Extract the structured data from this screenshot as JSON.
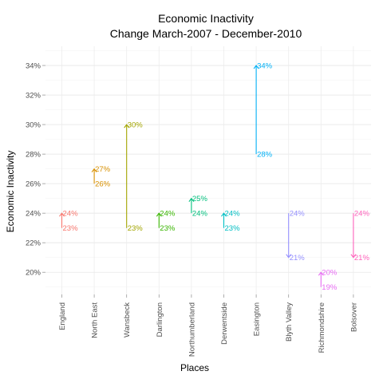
{
  "chart_data": {
    "type": "arrow",
    "title": "Economic Inactivity",
    "subtitle": "Change March-2007 - December-2010",
    "xlabel": "Places",
    "ylabel": "Economic Inactivity",
    "ylim": [
      18.5,
      35.3
    ],
    "yticks": [
      20,
      22,
      24,
      26,
      28,
      30,
      32,
      34
    ],
    "ytick_labels": [
      "20%",
      "22%",
      "24%",
      "26%",
      "28%",
      "30%",
      "32%",
      "34%"
    ],
    "grid": true,
    "categories": [
      "England",
      "North East",
      "Wansbeck",
      "Darlington",
      "Northumberland",
      "Derwentside",
      "Easington",
      "Blyth Valley",
      "Richmondshire",
      "Bolsover"
    ],
    "start_values": [
      23,
      26,
      23,
      23,
      24,
      23,
      28,
      24,
      19,
      24
    ],
    "end_values": [
      24,
      27,
      30,
      24,
      25,
      24,
      34,
      21,
      20,
      21
    ],
    "start_labels": [
      "23%",
      "26%",
      "23%",
      "23%",
      "24%",
      "23%",
      "28%",
      "24%",
      "19%",
      "24%"
    ],
    "end_labels": [
      "24%",
      "27%",
      "30%",
      "24%",
      "25%",
      "24%",
      "34%",
      "21%",
      "20%",
      "21%"
    ],
    "colors": [
      "#F8766D",
      "#D89000",
      "#A3A500",
      "#39B600",
      "#00BF7D",
      "#00BFC4",
      "#00B0F6",
      "#9590FF",
      "#E76BF3",
      "#FF62BC"
    ]
  }
}
